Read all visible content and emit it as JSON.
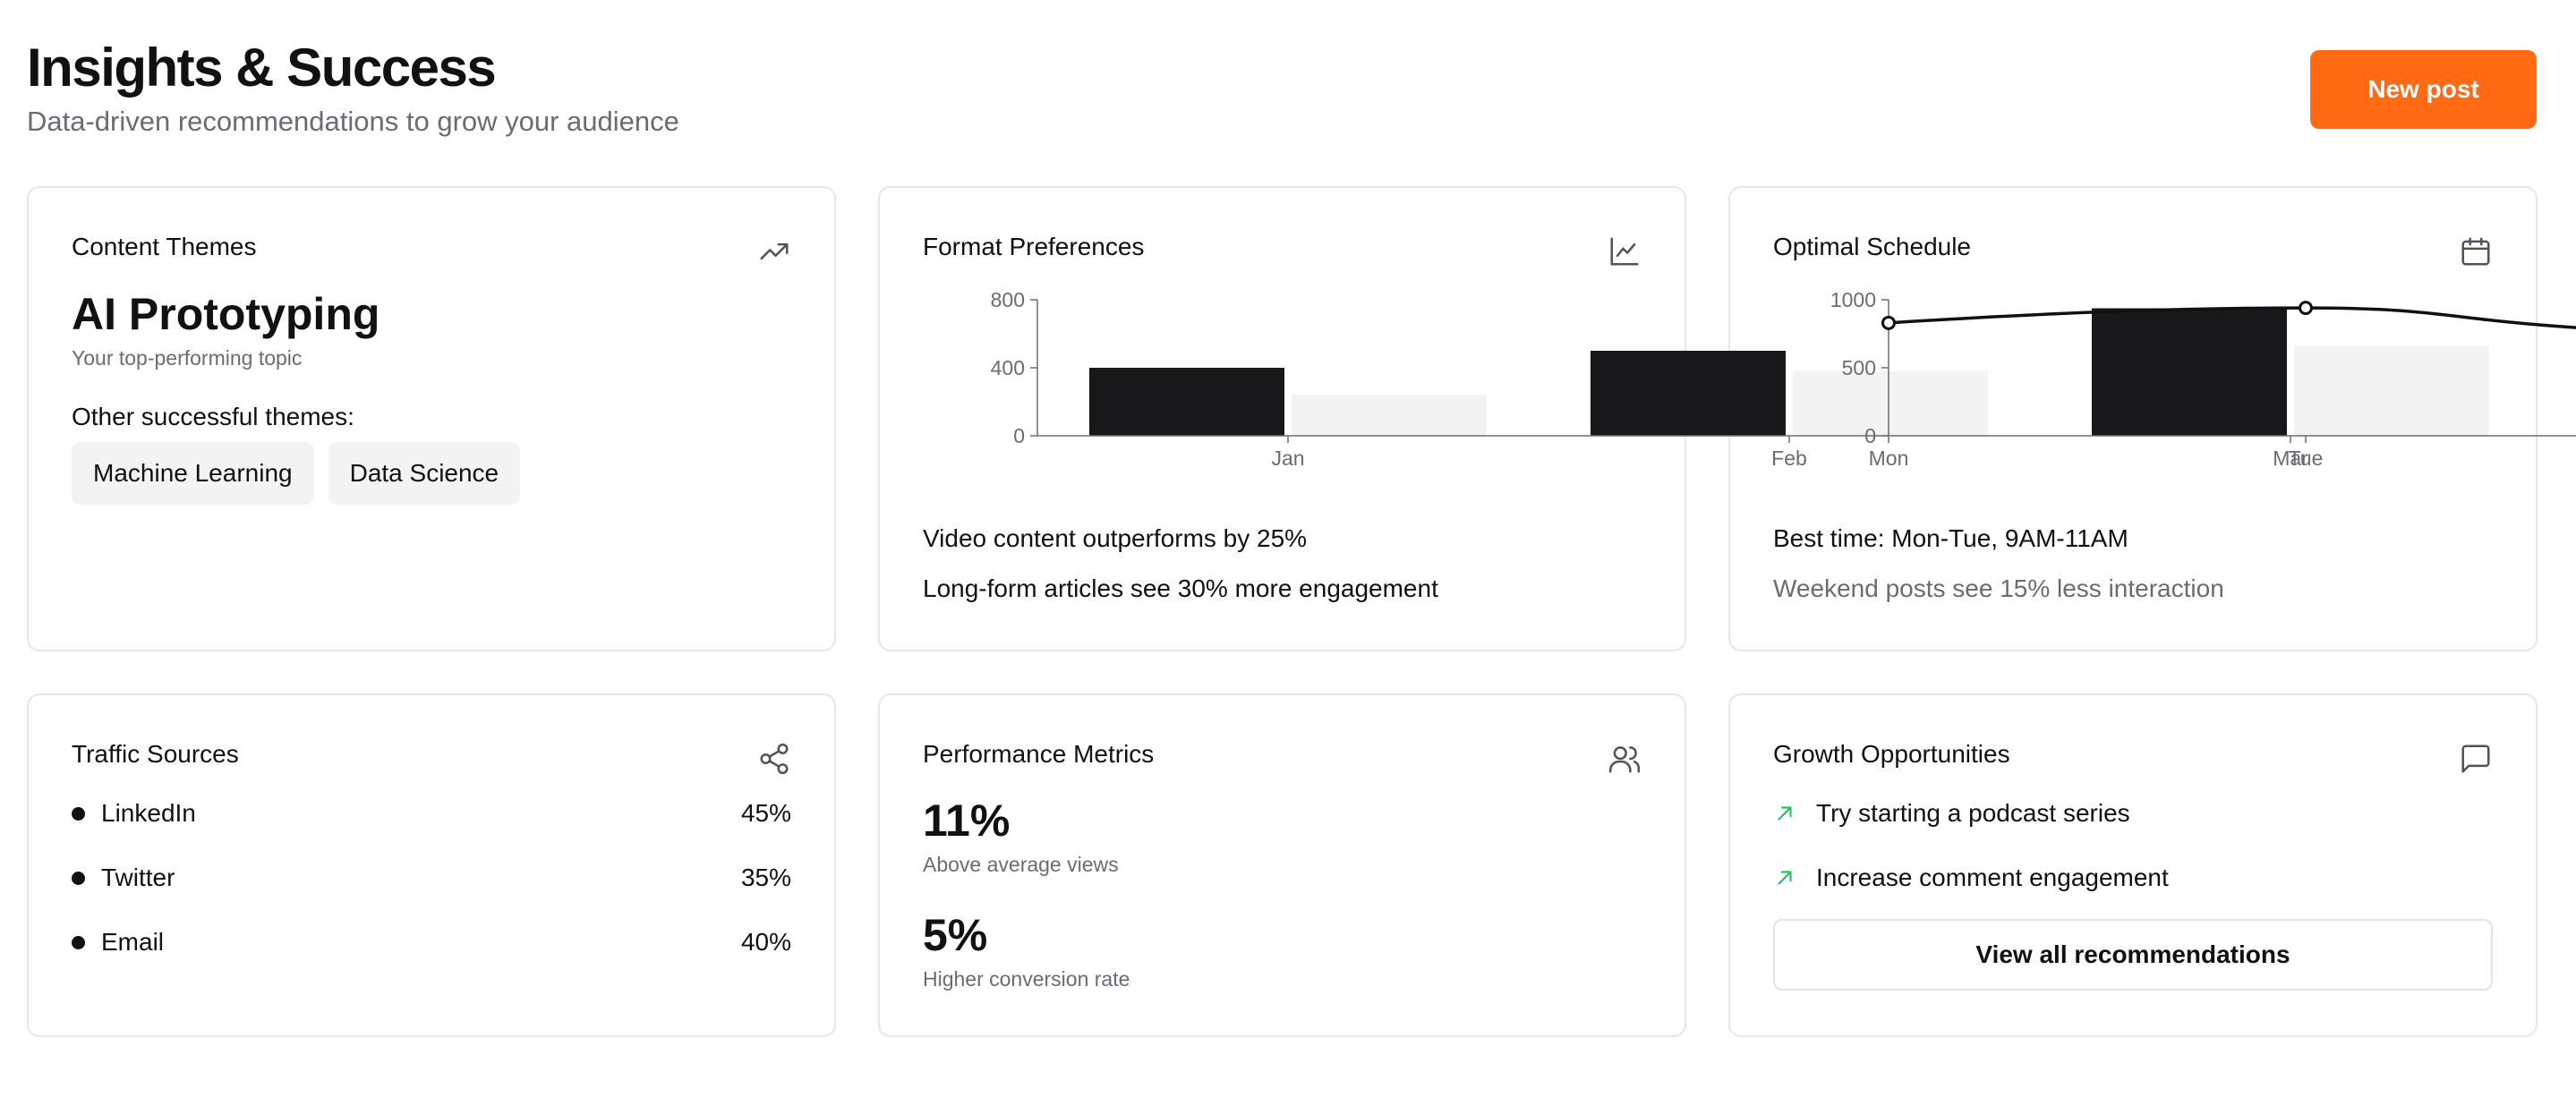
{
  "header": {
    "title": "Insights & Success",
    "subtitle": "Data-driven recommendations to grow your audience",
    "new_post_label": "New post"
  },
  "content_themes": {
    "title": "Content Themes",
    "icon": "trending-up-icon",
    "top_topic": "AI Prototyping",
    "top_topic_caption": "Your top-performing topic",
    "other_label": "Other successful themes:",
    "other_themes": [
      "Machine Learning",
      "Data Science"
    ]
  },
  "format_preferences": {
    "title": "Format Preferences",
    "icon": "line-chart-icon",
    "insights": [
      "Video content outperforms by 25%",
      "Long-form articles see 30% more engagement"
    ]
  },
  "optimal_schedule": {
    "title": "Optimal Schedule",
    "icon": "calendar-icon",
    "best_time": "Best time: Mon-Tue, 9AM-11AM",
    "weekend_note": "Weekend posts see 15% less interaction"
  },
  "traffic_sources": {
    "title": "Traffic Sources",
    "icon": "share-icon",
    "items": [
      {
        "name": "LinkedIn",
        "percent": "45%"
      },
      {
        "name": "Twitter",
        "percent": "35%"
      },
      {
        "name": "Email",
        "percent": "40%"
      }
    ]
  },
  "performance_metrics": {
    "title": "Performance Metrics",
    "icon": "users-icon",
    "metrics": [
      {
        "value": "11%",
        "label": "Above average views"
      },
      {
        "value": "5%",
        "label": "Higher conversion rate"
      }
    ]
  },
  "growth_opportunities": {
    "title": "Growth Opportunities",
    "icon": "message-square-icon",
    "items": [
      "Try starting a podcast series",
      "Increase comment engagement"
    ],
    "items_icon": "arrow-up-right-icon",
    "view_all_label": "View all recommendations"
  },
  "colors": {
    "accent": "#ff6a13",
    "bar_primary": "#18181b",
    "bar_secondary": "#f3f3f4",
    "positive": "#22c55e",
    "muted_text": "#6b6b73",
    "border": "#e7e7ea"
  },
  "chart_data": [
    {
      "type": "bar",
      "categories": [
        "Jan",
        "Feb",
        "Mar"
      ],
      "series": [
        {
          "values": [
            400,
            500,
            750
          ]
        },
        {
          "values": [
            240,
            380,
            530
          ]
        }
      ],
      "yticks": [
        0,
        400,
        800
      ],
      "ylim": [
        0,
        800
      ],
      "grid": false,
      "legend": "none"
    },
    {
      "type": "line",
      "x": [
        "Mon",
        "Tue"
      ],
      "series": [
        {
          "values": [
            830,
            940
          ]
        }
      ],
      "yticks": [
        0,
        500,
        1000
      ],
      "ylim": [
        0,
        1000
      ],
      "grid": false,
      "legend": "none"
    }
  ]
}
